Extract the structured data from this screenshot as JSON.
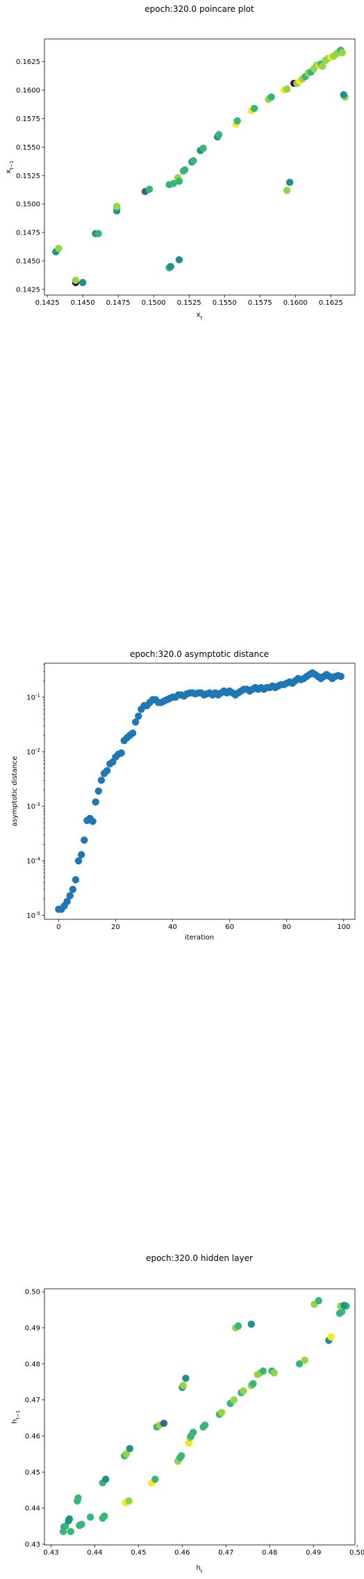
{
  "colors": {
    "viridis": [
      "#440154",
      "#31688e",
      "#21918c",
      "#35b779",
      "#90d743",
      "#fde725"
    ],
    "scatter_blue": "#1f77b4"
  },
  "chart_data": [
    {
      "type": "scatter",
      "title": "epoch:320.0 poincare plot",
      "xlabel": "x_t",
      "ylabel": "x_{t-1}",
      "xlim": [
        0.1423,
        0.1642
      ],
      "ylim": [
        0.142,
        0.1645
      ],
      "xticks": [
        "0.1425",
        "0.1450",
        "0.1475",
        "0.1500",
        "0.1525",
        "0.1550",
        "0.1575",
        "0.1600",
        "0.1625"
      ],
      "yticks": [
        "0.1425",
        "0.1450",
        "0.1475",
        "0.1500",
        "0.1525",
        "0.1550",
        "0.1575",
        "0.1600",
        "0.1625"
      ],
      "points": [
        [
          0.1431,
          0.1458,
          2
        ],
        [
          0.1433,
          0.1461,
          4
        ],
        [
          0.1445,
          0.1431,
          0
        ],
        [
          0.1445,
          0.1433,
          4
        ],
        [
          0.145,
          0.1431,
          2
        ],
        [
          0.1459,
          0.1474,
          2
        ],
        [
          0.1461,
          0.1474,
          3
        ],
        [
          0.1474,
          0.1494,
          2
        ],
        [
          0.1474,
          0.1497,
          3
        ],
        [
          0.1474,
          0.1498,
          4
        ],
        [
          0.1494,
          0.1511,
          1
        ],
        [
          0.1497,
          0.1513,
          3
        ],
        [
          0.1511,
          0.1444,
          3
        ],
        [
          0.1512,
          0.1445,
          2
        ],
        [
          0.1518,
          0.1451,
          2
        ],
        [
          0.1511,
          0.1517,
          3
        ],
        [
          0.1514,
          0.1518,
          3
        ],
        [
          0.1517,
          0.1523,
          4
        ],
        [
          0.1518,
          0.152,
          3
        ],
        [
          0.1521,
          0.1529,
          3
        ],
        [
          0.1522,
          0.153,
          3
        ],
        [
          0.1527,
          0.1537,
          2
        ],
        [
          0.1528,
          0.1538,
          3
        ],
        [
          0.1533,
          0.1547,
          2
        ],
        [
          0.1535,
          0.1549,
          3
        ],
        [
          0.1545,
          0.1559,
          2
        ],
        [
          0.1546,
          0.1561,
          3
        ],
        [
          0.1558,
          0.157,
          5
        ],
        [
          0.1559,
          0.1573,
          3
        ],
        [
          0.1569,
          0.1582,
          5
        ],
        [
          0.1571,
          0.1584,
          3
        ],
        [
          0.1581,
          0.1592,
          4
        ],
        [
          0.1583,
          0.1594,
          3
        ],
        [
          0.1592,
          0.16,
          5
        ],
        [
          0.1594,
          0.1601,
          4
        ],
        [
          0.1594,
          0.1512,
          4
        ],
        [
          0.1596,
          0.1519,
          2
        ],
        [
          0.1599,
          0.1606,
          0
        ],
        [
          0.1601,
          0.1606,
          4
        ],
        [
          0.1603,
          0.1608,
          5
        ],
        [
          0.1605,
          0.161,
          4
        ],
        [
          0.1607,
          0.1612,
          3
        ],
        [
          0.1609,
          0.1615,
          4
        ],
        [
          0.1611,
          0.1616,
          3
        ],
        [
          0.1613,
          0.1619,
          4
        ],
        [
          0.1615,
          0.1622,
          4
        ],
        [
          0.1617,
          0.1622,
          5
        ],
        [
          0.1618,
          0.1623,
          3
        ],
        [
          0.1619,
          0.1621,
          4
        ],
        [
          0.1621,
          0.1626,
          4
        ],
        [
          0.1623,
          0.1628,
          4
        ],
        [
          0.1625,
          0.1629,
          5
        ],
        [
          0.1627,
          0.163,
          4
        ],
        [
          0.1629,
          0.1632,
          4
        ],
        [
          0.1631,
          0.1634,
          4
        ],
        [
          0.1632,
          0.1635,
          3
        ],
        [
          0.1633,
          0.1633,
          4
        ],
        [
          0.1635,
          0.1594,
          4
        ],
        [
          0.1634,
          0.1596,
          2
        ]
      ]
    },
    {
      "type": "scatter",
      "title": "epoch:320.0 asymptotic distance",
      "xlabel": "iteration",
      "ylabel": "asymptotic distance",
      "yscale": "log",
      "xlim": [
        -4.95,
        103.95
      ],
      "ylim": [
        8.5e-06,
        0.42
      ],
      "xticks": [
        "0",
        "20",
        "40",
        "60",
        "80",
        "100"
      ],
      "yticks": [
        "10^{-5}",
        "10^{-4}",
        "10^{-3}",
        "10^{-2}",
        "10^{-1}"
      ],
      "x": [
        0,
        1,
        2,
        3,
        4,
        5,
        6,
        7,
        8,
        9,
        10,
        11,
        12,
        13,
        14,
        15,
        16,
        17,
        18,
        19,
        20,
        21,
        22,
        23,
        24,
        25,
        26,
        27,
        28,
        29,
        30,
        31,
        32,
        33,
        34,
        35,
        36,
        37,
        38,
        39,
        40,
        41,
        42,
        43,
        44,
        45,
        46,
        47,
        48,
        49,
        50,
        51,
        52,
        53,
        54,
        55,
        56,
        57,
        58,
        59,
        60,
        61,
        62,
        63,
        64,
        65,
        66,
        67,
        68,
        69,
        70,
        71,
        72,
        73,
        74,
        75,
        76,
        77,
        78,
        79,
        80,
        81,
        82,
        83,
        84,
        85,
        86,
        87,
        88,
        89,
        90,
        91,
        92,
        93,
        94,
        95,
        96,
        97,
        98,
        99
      ],
      "y": [
        1.3e-05,
        1.3e-05,
        1.5e-05,
        1.8e-05,
        2.3e-05,
        3e-05,
        4.5e-05,
        0.0001,
        0.00013,
        0.00024,
        0.00055,
        0.0006,
        0.00053,
        0.0012,
        0.0019,
        0.003,
        0.004,
        0.0045,
        0.006,
        0.0065,
        0.008,
        0.009,
        0.0095,
        0.016,
        0.018,
        0.02,
        0.022,
        0.035,
        0.045,
        0.06,
        0.07,
        0.07,
        0.08,
        0.09,
        0.09,
        0.08,
        0.08,
        0.085,
        0.09,
        0.095,
        0.1,
        0.1,
        0.11,
        0.11,
        0.105,
        0.115,
        0.12,
        0.12,
        0.115,
        0.12,
        0.12,
        0.11,
        0.115,
        0.12,
        0.11,
        0.12,
        0.11,
        0.12,
        0.13,
        0.12,
        0.13,
        0.12,
        0.11,
        0.12,
        0.13,
        0.14,
        0.14,
        0.13,
        0.14,
        0.15,
        0.14,
        0.15,
        0.14,
        0.15,
        0.15,
        0.16,
        0.15,
        0.16,
        0.17,
        0.17,
        0.18,
        0.19,
        0.18,
        0.2,
        0.22,
        0.21,
        0.22,
        0.24,
        0.26,
        0.28,
        0.26,
        0.24,
        0.22,
        0.24,
        0.26,
        0.24,
        0.22,
        0.24,
        0.25,
        0.24
      ]
    },
    {
      "type": "scatter",
      "title": "epoch:320.0 hidden layer",
      "xlabel": "h_t",
      "ylabel": "h_{t-1}",
      "xlim": [
        0.4285,
        0.4995
      ],
      "ylim": [
        0.4298,
        0.5008
      ],
      "xticks": [
        "0.43",
        "0.44",
        "0.45",
        "0.46",
        "0.47",
        "0.48",
        "0.49",
        "0.50"
      ],
      "yticks": [
        "0.43",
        "0.44",
        "0.45",
        "0.46",
        "0.47",
        "0.48",
        "0.49",
        "0.50"
      ],
      "points": [
        [
          0.433,
          0.4348,
          2
        ],
        [
          0.4333,
          0.435,
          3
        ],
        [
          0.4328,
          0.4335,
          3
        ],
        [
          0.434,
          0.4365,
          2
        ],
        [
          0.4345,
          0.4335,
          3
        ],
        [
          0.4342,
          0.437,
          2
        ],
        [
          0.436,
          0.442,
          3
        ],
        [
          0.4362,
          0.4428,
          3
        ],
        [
          0.437,
          0.4355,
          3
        ],
        [
          0.4365,
          0.4352,
          3
        ],
        [
          0.439,
          0.4375,
          3
        ],
        [
          0.4418,
          0.447,
          3
        ],
        [
          0.4425,
          0.448,
          2
        ],
        [
          0.4418,
          0.4372,
          3
        ],
        [
          0.4422,
          0.4378,
          3
        ],
        [
          0.4468,
          0.4545,
          3
        ],
        [
          0.4472,
          0.455,
          4
        ],
        [
          0.448,
          0.4565,
          2
        ],
        [
          0.447,
          0.4415,
          5
        ],
        [
          0.4478,
          0.442,
          4
        ],
        [
          0.453,
          0.447,
          5
        ],
        [
          0.4538,
          0.448,
          3
        ],
        [
          0.4542,
          0.4625,
          3
        ],
        [
          0.4548,
          0.463,
          4
        ],
        [
          0.4558,
          0.4635,
          1
        ],
        [
          0.459,
          0.453,
          4
        ],
        [
          0.4595,
          0.454,
          3
        ],
        [
          0.4598,
          0.4545,
          3
        ],
        [
          0.46,
          0.4735,
          2
        ],
        [
          0.4602,
          0.474,
          4
        ],
        [
          0.4608,
          0.476,
          2
        ],
        [
          0.4615,
          0.458,
          5
        ],
        [
          0.4618,
          0.4595,
          4
        ],
        [
          0.462,
          0.46,
          3
        ],
        [
          0.4625,
          0.461,
          3
        ],
        [
          0.4648,
          0.4625,
          3
        ],
        [
          0.4652,
          0.463,
          3
        ],
        [
          0.4685,
          0.466,
          3
        ],
        [
          0.469,
          0.4665,
          4
        ],
        [
          0.471,
          0.469,
          3
        ],
        [
          0.4718,
          0.47,
          4
        ],
        [
          0.4722,
          0.49,
          4
        ],
        [
          0.4728,
          0.4905,
          3
        ],
        [
          0.4735,
          0.472,
          3
        ],
        [
          0.474,
          0.4725,
          4
        ],
        [
          0.4758,
          0.474,
          4
        ],
        [
          0.4762,
          0.4745,
          3
        ],
        [
          0.4758,
          0.491,
          2
        ],
        [
          0.4772,
          0.477,
          4
        ],
        [
          0.4778,
          0.4775,
          4
        ],
        [
          0.4785,
          0.478,
          3
        ],
        [
          0.4805,
          0.478,
          3
        ],
        [
          0.481,
          0.4775,
          4
        ],
        [
          0.4868,
          0.48,
          3
        ],
        [
          0.488,
          0.481,
          4
        ],
        [
          0.4902,
          0.4965,
          4
        ],
        [
          0.4912,
          0.4975,
          3
        ],
        [
          0.4935,
          0.4865,
          2
        ],
        [
          0.494,
          0.4875,
          5
        ],
        [
          0.496,
          0.494,
          3
        ],
        [
          0.4965,
          0.4945,
          3
        ],
        [
          0.4962,
          0.496,
          4
        ],
        [
          0.4975,
          0.496,
          3
        ],
        [
          0.497,
          0.4962,
          2
        ]
      ]
    }
  ]
}
